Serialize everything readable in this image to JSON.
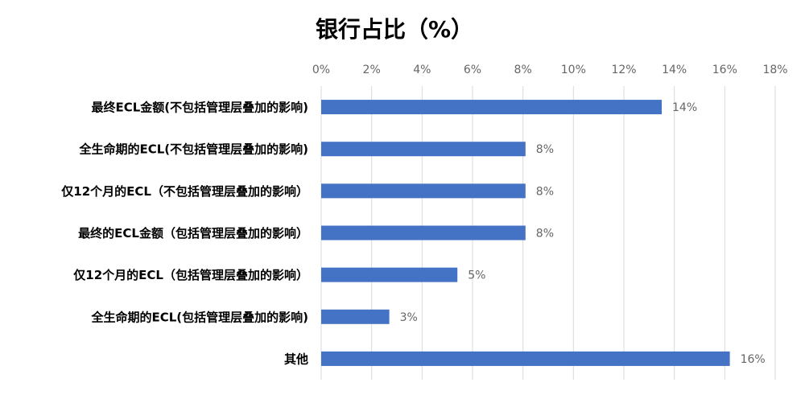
{
  "chart_data": {
    "type": "bar",
    "orientation": "horizontal",
    "title": "银行占比（%）",
    "categories": [
      "最终ECL金额(不包括管理层叠加的影响)",
      "全生命期的ECL(不包括管理层叠加的影响)",
      "仅12个月的ECL（不包括管理层叠加的影响）",
      "最终的ECL金额（包括管理层叠加的影响）",
      "仅12个月的ECL（包括管理层叠加的影响）",
      "全生命期的ECL(包括管理层叠加的影响)",
      "其他"
    ],
    "values": [
      13.5,
      8.1,
      8.1,
      8.1,
      5.4,
      2.7,
      16.2
    ],
    "value_labels": [
      "14%",
      "8%",
      "8%",
      "8%",
      "5%",
      "3%",
      "16%"
    ],
    "color": "#4472c4",
    "xlim": [
      0,
      18
    ],
    "xticks": [
      {
        "value": 0,
        "label": "0%"
      },
      {
        "value": 2,
        "label": "2%"
      },
      {
        "value": 4,
        "label": "4%"
      },
      {
        "value": 6,
        "label": "6%"
      },
      {
        "value": 8,
        "label": "8%"
      },
      {
        "value": 10,
        "label": "10%"
      },
      {
        "value": 12,
        "label": "12%"
      },
      {
        "value": 14,
        "label": "14%"
      },
      {
        "value": 16,
        "label": "16%"
      },
      {
        "value": 18,
        "label": "18%"
      }
    ],
    "grid": true
  }
}
